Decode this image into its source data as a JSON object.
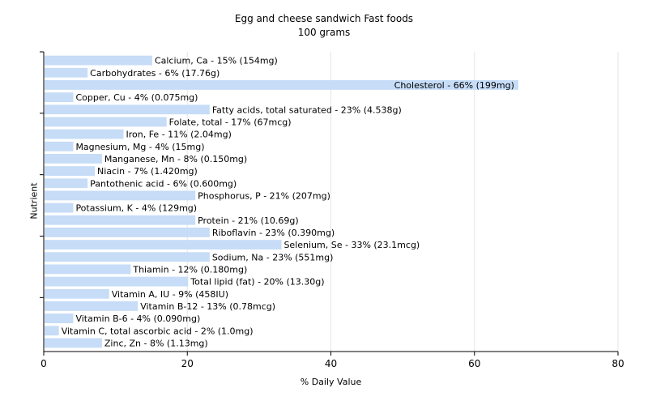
{
  "chart_data": {
    "type": "bar",
    "orientation": "horizontal",
    "title": "Egg and cheese sandwich Fast foods",
    "subtitle": "100 grams",
    "xlabel": "% Daily Value",
    "ylabel": "Nutrient",
    "xlim": [
      0,
      80
    ],
    "xticks": [
      0,
      20,
      40,
      60,
      80
    ],
    "grid": true,
    "bar_color": "#c6dcf7",
    "categories": [
      "Calcium, Ca",
      "Carbohydrates",
      "Cholesterol",
      "Copper, Cu",
      "Fatty acids, total saturated",
      "Folate, total",
      "Iron, Fe",
      "Magnesium, Mg",
      "Manganese, Mn",
      "Niacin",
      "Pantothenic acid",
      "Phosphorus, P",
      "Potassium, K",
      "Protein",
      "Riboflavin",
      "Selenium, Se",
      "Sodium, Na",
      "Thiamin",
      "Total lipid (fat)",
      "Vitamin A, IU",
      "Vitamin B-12",
      "Vitamin B-6",
      "Vitamin C, total ascorbic acid",
      "Zinc, Zn"
    ],
    "values": [
      15,
      6,
      66,
      4,
      23,
      17,
      11,
      4,
      8,
      7,
      6,
      21,
      4,
      21,
      23,
      33,
      23,
      12,
      20,
      9,
      13,
      4,
      2,
      8
    ],
    "labels": [
      "Calcium, Ca - 15% (154mg)",
      "Carbohydrates - 6% (17.76g)",
      "Cholesterol - 66% (199mg)",
      "Copper, Cu - 4% (0.075mg)",
      "Fatty acids, total saturated - 23% (4.538g)",
      "Folate, total - 17% (67mcg)",
      "Iron, Fe - 11% (2.04mg)",
      "Magnesium, Mg - 4% (15mg)",
      "Manganese, Mn - 8% (0.150mg)",
      "Niacin - 7% (1.420mg)",
      "Pantothenic acid - 6% (0.600mg)",
      "Phosphorus, P - 21% (207mg)",
      "Potassium, K - 4% (129mg)",
      "Protein - 21% (10.69g)",
      "Riboflavin - 23% (0.390mg)",
      "Selenium, Se - 33% (23.1mcg)",
      "Sodium, Na - 23% (551mg)",
      "Thiamin - 12% (0.180mg)",
      "Total lipid (fat) - 20% (13.30g)",
      "Vitamin A, IU - 9% (458IU)",
      "Vitamin B-12 - 13% (0.78mcg)",
      "Vitamin B-6 - 4% (0.090mg)",
      "Vitamin C, total ascorbic acid - 2% (1.0mg)",
      "Zinc, Zn - 8% (1.13mg)"
    ]
  }
}
